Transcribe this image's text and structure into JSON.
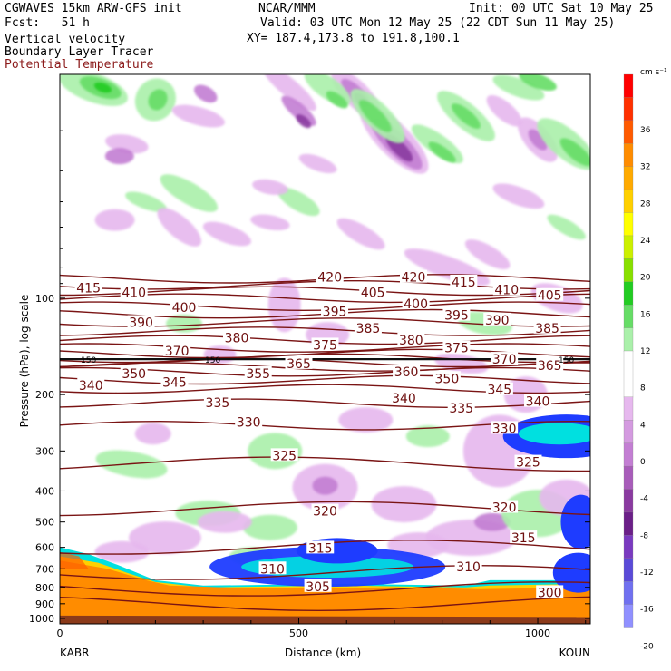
{
  "header": {
    "model_line": "CGWAVES 15km ARW-GFS init",
    "fcst_line": "Fcst:   51 h",
    "field1": "Vertical velocity",
    "field2": "Boundary Layer Tracer",
    "field3": "Potential Temperature",
    "org": "NCAR/MMM",
    "init": "Init: 00 UTC Sat 10 May 25",
    "valid": "Valid: 03 UTC Mon 12 May 25 (22 CDT Sun 11 May 25)",
    "xy": "XY= 187.4,173.8 to 191.8,100.1"
  },
  "colors": {
    "theta": "#7a1414",
    "tracer_orange": "#ff8c00",
    "tracer_blue": "#1e3cff",
    "tracer_cyan": "#00e0e0",
    "w_green_light": "#aaf0aa",
    "w_green": "#66dd66",
    "w_green_dark": "#22cc22",
    "w_purple_light": "#e6b8ee",
    "w_purple": "#c37ed3",
    "w_purple_dark": "#8a3aa0"
  },
  "chart_data": {
    "type": "heatmap",
    "title": "Vertical velocity / Boundary Layer Tracer / Potential Temperature",
    "xlabel": "Distance (km)",
    "ylabel": "Pressure (hPa), log scale",
    "x_ticks": [
      0,
      500,
      1000
    ],
    "x_range": [
      0,
      1110
    ],
    "y_ticks": [
      100,
      200,
      300,
      400,
      500,
      600,
      700,
      800,
      900,
      1000
    ],
    "y_scale": "log",
    "y_range": [
      1040,
      20
    ],
    "endpoints": {
      "left": "KABR",
      "right": "KOUN"
    },
    "colorbar": {
      "units": "cm s⁻¹",
      "ticks": [
        36,
        32,
        28,
        24,
        20,
        16,
        12,
        8,
        4,
        0,
        -4,
        -8,
        -12,
        -16,
        -20
      ],
      "colors": [
        "#ff0000",
        "#ff3000",
        "#ff5a00",
        "#ff8c00",
        "#ffaa00",
        "#ffd000",
        "#ffff00",
        "#ccf000",
        "#88e000",
        "#22cc22",
        "#66dd66",
        "#aaf0aa",
        "#ffffff",
        "#ffffff",
        "#e6b8ee",
        "#d49ae0",
        "#c37ed3",
        "#a85cba",
        "#8a3aa0",
        "#6b1f88",
        "#7a3ac0",
        "#5a4ad8",
        "#7070f0",
        "#9090ff"
      ]
    },
    "theta_levels": [
      300,
      305,
      310,
      315,
      320,
      325,
      330,
      335,
      340,
      345,
      350,
      355,
      360,
      365,
      370,
      375,
      380,
      385,
      390,
      395,
      400,
      405,
      410,
      415,
      420
    ],
    "theta_labels": [
      {
        "text": "415",
        "x": 60,
        "p": 93
      },
      {
        "text": "410",
        "x": 155,
        "p": 96
      },
      {
        "text": "400",
        "x": 260,
        "p": 107
      },
      {
        "text": "390",
        "x": 170,
        "p": 119
      },
      {
        "text": "380",
        "x": 370,
        "p": 133
      },
      {
        "text": "370",
        "x": 245,
        "p": 146
      },
      {
        "text": "365",
        "x": 500,
        "p": 160
      },
      {
        "text": "360",
        "x": 725,
        "p": 170
      },
      {
        "text": "355",
        "x": 415,
        "p": 172
      },
      {
        "text": "350",
        "x": 155,
        "p": 172
      },
      {
        "text": "345",
        "x": 240,
        "p": 183
      },
      {
        "text": "340",
        "x": 65,
        "p": 187
      },
      {
        "text": "335",
        "x": 330,
        "p": 212
      },
      {
        "text": "330",
        "x": 395,
        "p": 244
      },
      {
        "text": "325",
        "x": 470,
        "p": 310
      },
      {
        "text": "320",
        "x": 555,
        "p": 462
      },
      {
        "text": "315",
        "x": 545,
        "p": 603
      },
      {
        "text": "310",
        "x": 445,
        "p": 700
      },
      {
        "text": "305",
        "x": 540,
        "p": 795
      },
      {
        "text": "300",
        "x": 1025,
        "p": 830
      },
      {
        "text": "420",
        "x": 565,
        "p": 86
      },
      {
        "text": "420",
        "x": 740,
        "p": 86
      },
      {
        "text": "415",
        "x": 845,
        "p": 89
      },
      {
        "text": "410",
        "x": 935,
        "p": 94
      },
      {
        "text": "405",
        "x": 655,
        "p": 96
      },
      {
        "text": "405",
        "x": 1025,
        "p": 98
      },
      {
        "text": "400",
        "x": 745,
        "p": 104
      },
      {
        "text": "395",
        "x": 575,
        "p": 110
      },
      {
        "text": "395",
        "x": 830,
        "p": 113
      },
      {
        "text": "390",
        "x": 915,
        "p": 117
      },
      {
        "text": "385",
        "x": 645,
        "p": 124
      },
      {
        "text": "385",
        "x": 1020,
        "p": 124
      },
      {
        "text": "380",
        "x": 735,
        "p": 135
      },
      {
        "text": "375",
        "x": 555,
        "p": 140
      },
      {
        "text": "375",
        "x": 830,
        "p": 143
      },
      {
        "text": "370",
        "x": 930,
        "p": 155
      },
      {
        "text": "365",
        "x": 1025,
        "p": 162
      },
      {
        "text": "350",
        "x": 810,
        "p": 178
      },
      {
        "text": "345",
        "x": 920,
        "p": 193
      },
      {
        "text": "340",
        "x": 720,
        "p": 205
      },
      {
        "text": "340",
        "x": 1000,
        "p": 210
      },
      {
        "text": "335",
        "x": 840,
        "p": 220
      },
      {
        "text": "330",
        "x": 930,
        "p": 255
      },
      {
        "text": "325",
        "x": 980,
        "p": 325
      },
      {
        "text": "320",
        "x": 930,
        "p": 450
      },
      {
        "text": "315",
        "x": 970,
        "p": 560
      },
      {
        "text": "310",
        "x": 855,
        "p": 690
      }
    ],
    "tropopause_p": 155,
    "tropopause_labels": [
      "150",
      "150",
      "150"
    ]
  }
}
